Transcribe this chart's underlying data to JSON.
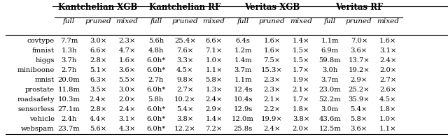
{
  "title": "",
  "col_groups": [
    "Kantchelian XGB",
    "Kantchelian RF",
    "Veritas XGB",
    "Veritas RF"
  ],
  "sub_cols": [
    "full",
    "pruned",
    "mixed"
  ],
  "rows": [
    "covtype",
    "fmnist",
    "higgs",
    "miniboone",
    "mnist",
    "prostate",
    "roadsafety",
    "sensorless",
    "vehicle",
    "webspam"
  ],
  "data": {
    "Kantchelian XGB": {
      "full": [
        "7.7m",
        "1.3h",
        "3.7h",
        "2.7h",
        "20.0m",
        "11.8m",
        "10.3m",
        "27.1m",
        "2.4h",
        "23.7m"
      ],
      "pruned": [
        "3.0×",
        "6.6×",
        "2.8×",
        "5.1×",
        "6.3×",
        "3.5×",
        "2.4×",
        "2.8×",
        "4.4×",
        "5.6×"
      ],
      "mixed": [
        "2.3×",
        "4.7×",
        "1.6×",
        "3.6×",
        "5.5×",
        "3.0×",
        "2.0×",
        "2.4×",
        "3.1×",
        "4.3×"
      ]
    },
    "Kantchelian RF": {
      "full": [
        "5.6h",
        "4.8h",
        "6.0h*",
        "6.0h*",
        "2.7h",
        "6.0h*",
        "5.8h",
        "6.0h*",
        "6.0h*",
        "6.0h*"
      ],
      "pruned": [
        "25.4×",
        "7.6×",
        "3.3×",
        "4.5×",
        "9.8×",
        "2.7×",
        "10.2×",
        "5.4×",
        "3.8×",
        "12.2×"
      ],
      "mixed": [
        "6.6×",
        "7.1×",
        "1.0×",
        "1.1×",
        "5.8×",
        "1.3×",
        "2.4×",
        "2.9×",
        "1.4×",
        "7.2×"
      ]
    },
    "Veritas XGB": {
      "full": [
        "6.4s",
        "1.2m",
        "1.4m",
        "3.7m",
        "1.1m",
        "12.4s",
        "10.4s",
        "12.9s",
        "12.0m",
        "25.8s"
      ],
      "pruned": [
        "1.6×",
        "1.6×",
        "7.5×",
        "15.3×",
        "2.3×",
        "2.3×",
        "2.1×",
        "2.2×",
        "19.9×",
        "2.4×"
      ],
      "mixed": [
        "1.4×",
        "1.5×",
        "1.5×",
        "1.7×",
        "1.9×",
        "2.1×",
        "1.7×",
        "1.8×",
        "3.8×",
        "2.0×"
      ]
    },
    "Veritas RF": {
      "full": [
        "1.1m",
        "6.9m",
        "59.8m",
        "3.0h",
        "3.7m",
        "23.0m",
        "52.2m",
        "3.0m",
        "43.6m",
        "12.5m"
      ],
      "pruned": [
        "7.0×",
        "3.6×",
        "13.7×",
        "19.2×",
        "2.9×",
        "25.2×",
        "35.9×",
        "5.4×",
        "5.8×",
        "3.6×"
      ],
      "mixed": [
        "1.6×",
        "3.1×",
        "2.4×",
        "2.0×",
        "2.7×",
        "2.6×",
        "4.5×",
        "1.8×",
        "1.0×",
        "1.1×"
      ]
    }
  },
  "bg_color": "#f0f0f0",
  "table_bg": "#ffffff"
}
